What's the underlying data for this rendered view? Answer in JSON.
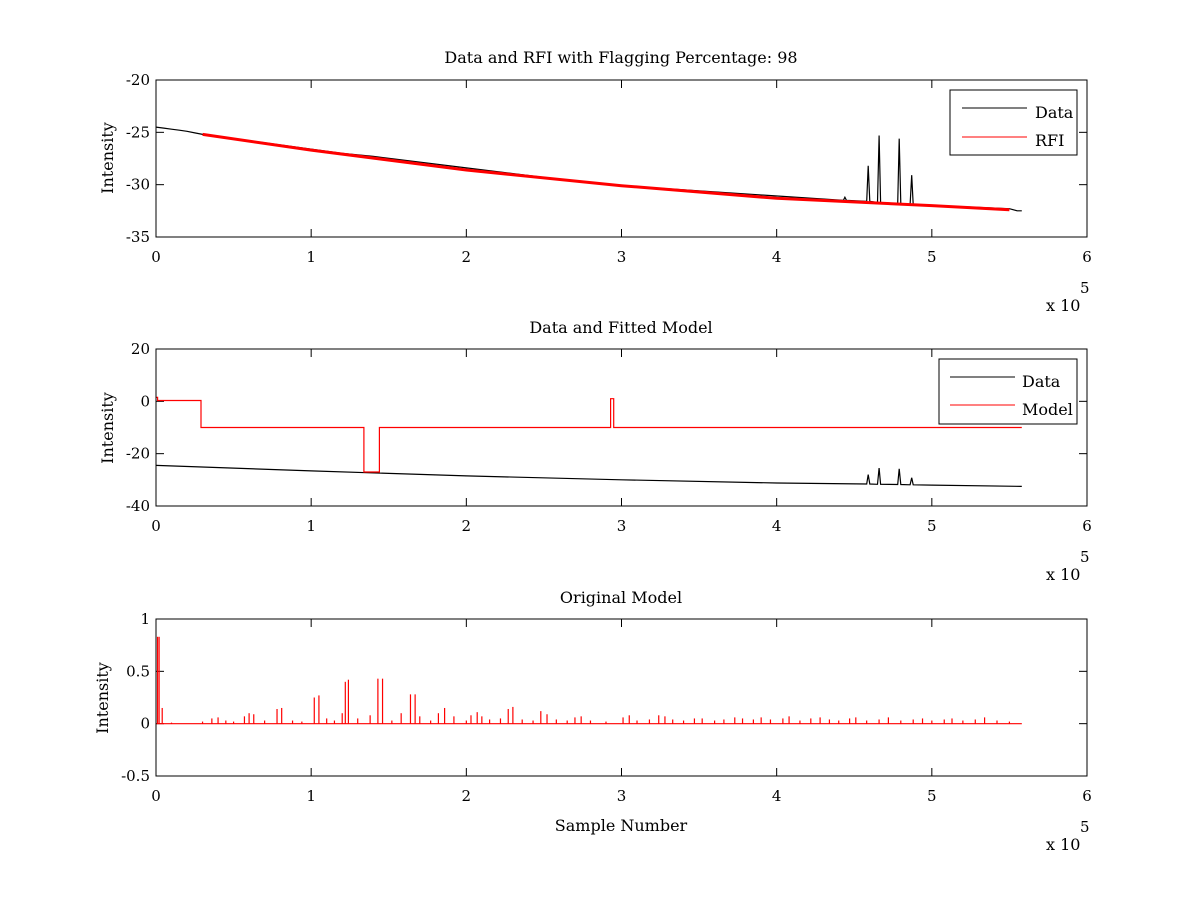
{
  "chart_data": [
    {
      "type": "line",
      "title": "Data and RFI with Flagging Percentage: 98",
      "xlabel": "",
      "ylabel": "Intensity",
      "xlim": [
        0,
        6
      ],
      "ylim": [
        -35,
        -20
      ],
      "x_scale_label": "x 10",
      "x_scale_exponent": "5",
      "xticks": [
        0,
        1,
        2,
        3,
        4,
        5,
        6
      ],
      "yticks": [
        -35,
        -30,
        -25,
        -20
      ],
      "grid": false,
      "legend_position": "top-right",
      "series": [
        {
          "name": "Data",
          "color": "#000000",
          "x": [
            0,
            0.05,
            0.1,
            0.15,
            0.2,
            0.25,
            0.3,
            1.2,
            1.4,
            2.8,
            2.95,
            4.43,
            4.44,
            4.45,
            4.58,
            4.59,
            4.6,
            4.65,
            4.66,
            4.67,
            4.78,
            4.79,
            4.8,
            4.86,
            4.87,
            4.88,
            5.5,
            5.55,
            5.58
          ],
          "values": [
            -24.5,
            -24.6,
            -24.7,
            -24.8,
            -24.9,
            -25.05,
            -25.2,
            -27,
            -27.3,
            -29.85,
            -30.05,
            -31.5,
            -31.2,
            -31.5,
            -31.6,
            -28.2,
            -31.6,
            -31.7,
            -25.3,
            -31.7,
            -31.8,
            -25.6,
            -31.8,
            -31.9,
            -29.1,
            -31.9,
            -32.3,
            -32.5,
            -32.5
          ]
        },
        {
          "name": "RFI",
          "color": "#ff0000",
          "x": [
            0.3,
            1,
            2,
            3,
            4,
            5,
            5.5
          ],
          "values": [
            -25.2,
            -26.7,
            -28.6,
            -30.1,
            -31.3,
            -32.0,
            -32.4
          ]
        }
      ]
    },
    {
      "type": "line",
      "title": "Data and Fitted Model",
      "xlabel": "",
      "ylabel": "Intensity",
      "xlim": [
        0,
        6
      ],
      "ylim": [
        -40,
        20
      ],
      "x_scale_label": "x 10",
      "x_scale_exponent": "5",
      "xticks": [
        0,
        1,
        2,
        3,
        4,
        5,
        6
      ],
      "yticks": [
        -40,
        -20,
        0,
        20
      ],
      "grid": false,
      "legend_position": "top-right",
      "series": [
        {
          "name": "Data",
          "color": "#000000",
          "x": [
            0,
            1,
            2,
            3,
            4,
            4.58,
            4.59,
            4.6,
            4.65,
            4.66,
            4.67,
            4.78,
            4.79,
            4.8,
            4.86,
            4.87,
            4.88,
            5,
            5.58
          ],
          "values": [
            -24.5,
            -26.6,
            -28.5,
            -30,
            -31.2,
            -31.6,
            -28,
            -31.6,
            -31.7,
            -25.5,
            -31.7,
            -31.8,
            -25.8,
            -31.8,
            -31.9,
            -29.2,
            -31.9,
            -32,
            -32.5
          ]
        },
        {
          "name": "Model",
          "color": "#ff0000",
          "x": [
            0,
            0.01,
            0.01,
            0.29,
            0.29,
            1.34,
            1.34,
            1.44,
            1.44,
            2.93,
            2.93,
            2.95,
            2.95,
            5.58
          ],
          "values": [
            1.5,
            1.5,
            0.3,
            0.3,
            -10,
            -10,
            -27,
            -27,
            -10,
            -10,
            1,
            1,
            -10,
            -10
          ]
        }
      ]
    },
    {
      "type": "line",
      "title": "Original Model",
      "xlabel": "Sample Number",
      "ylabel": "Intensity",
      "xlim": [
        0,
        6
      ],
      "ylim": [
        -0.5,
        1
      ],
      "x_scale_label": "x 10",
      "x_scale_exponent": "5",
      "xticks": [
        0,
        1,
        2,
        3,
        4,
        5,
        6
      ],
      "yticks": [
        -0.5,
        0,
        0.5,
        1
      ],
      "grid": false,
      "series": [
        {
          "color": "#ff0000",
          "baseline": 0,
          "end_x": 5.58,
          "spikes": [
            [
              0.01,
              0.83
            ],
            [
              0.02,
              0.83
            ],
            [
              0.04,
              0.15
            ],
            [
              0.1,
              0.01
            ],
            [
              0.3,
              0.02
            ],
            [
              0.36,
              0.05
            ],
            [
              0.4,
              0.06
            ],
            [
              0.45,
              0.03
            ],
            [
              0.5,
              0.02
            ],
            [
              0.57,
              0.07
            ],
            [
              0.6,
              0.1
            ],
            [
              0.63,
              0.09
            ],
            [
              0.7,
              0.03
            ],
            [
              0.78,
              0.14
            ],
            [
              0.81,
              0.15
            ],
            [
              0.88,
              0.03
            ],
            [
              0.94,
              0.02
            ],
            [
              1.02,
              0.25
            ],
            [
              1.05,
              0.27
            ],
            [
              1.1,
              0.05
            ],
            [
              1.15,
              0.03
            ],
            [
              1.2,
              0.1
            ],
            [
              1.22,
              0.4
            ],
            [
              1.24,
              0.42
            ],
            [
              1.3,
              0.05
            ],
            [
              1.38,
              0.08
            ],
            [
              1.43,
              0.43
            ],
            [
              1.46,
              0.43
            ],
            [
              1.52,
              0.03
            ],
            [
              1.58,
              0.1
            ],
            [
              1.64,
              0.28
            ],
            [
              1.67,
              0.28
            ],
            [
              1.7,
              0.07
            ],
            [
              1.77,
              0.03
            ],
            [
              1.82,
              0.1
            ],
            [
              1.86,
              0.15
            ],
            [
              1.92,
              0.07
            ],
            [
              2,
              0.03
            ],
            [
              2.03,
              0.08
            ],
            [
              2.07,
              0.11
            ],
            [
              2.1,
              0.07
            ],
            [
              2.15,
              0.04
            ],
            [
              2.22,
              0.05
            ],
            [
              2.27,
              0.14
            ],
            [
              2.3,
              0.16
            ],
            [
              2.36,
              0.04
            ],
            [
              2.43,
              0.03
            ],
            [
              2.48,
              0.12
            ],
            [
              2.52,
              0.09
            ],
            [
              2.58,
              0.04
            ],
            [
              2.65,
              0.03
            ],
            [
              2.7,
              0.06
            ],
            [
              2.74,
              0.07
            ],
            [
              2.8,
              0.03
            ],
            [
              2.9,
              0.02
            ],
            [
              3.01,
              0.06
            ],
            [
              3.05,
              0.08
            ],
            [
              3.1,
              0.03
            ],
            [
              3.18,
              0.04
            ],
            [
              3.24,
              0.08
            ],
            [
              3.28,
              0.07
            ],
            [
              3.33,
              0.04
            ],
            [
              3.4,
              0.03
            ],
            [
              3.47,
              0.05
            ],
            [
              3.52,
              0.05
            ],
            [
              3.6,
              0.03
            ],
            [
              3.66,
              0.04
            ],
            [
              3.73,
              0.06
            ],
            [
              3.78,
              0.05
            ],
            [
              3.85,
              0.04
            ],
            [
              3.9,
              0.06
            ],
            [
              3.96,
              0.04
            ],
            [
              4.04,
              0.05
            ],
            [
              4.08,
              0.07
            ],
            [
              4.15,
              0.03
            ],
            [
              4.22,
              0.05
            ],
            [
              4.28,
              0.06
            ],
            [
              4.34,
              0.04
            ],
            [
              4.4,
              0.03
            ],
            [
              4.47,
              0.05
            ],
            [
              4.51,
              0.06
            ],
            [
              4.58,
              0.03
            ],
            [
              4.66,
              0.04
            ],
            [
              4.72,
              0.06
            ],
            [
              4.8,
              0.03
            ],
            [
              4.88,
              0.04
            ],
            [
              4.94,
              0.05
            ],
            [
              5,
              0.03
            ],
            [
              5.08,
              0.04
            ],
            [
              5.13,
              0.05
            ],
            [
              5.2,
              0.03
            ],
            [
              5.28,
              0.04
            ],
            [
              5.34,
              0.06
            ],
            [
              5.42,
              0.03
            ],
            [
              5.5,
              0.02
            ]
          ]
        }
      ]
    }
  ]
}
